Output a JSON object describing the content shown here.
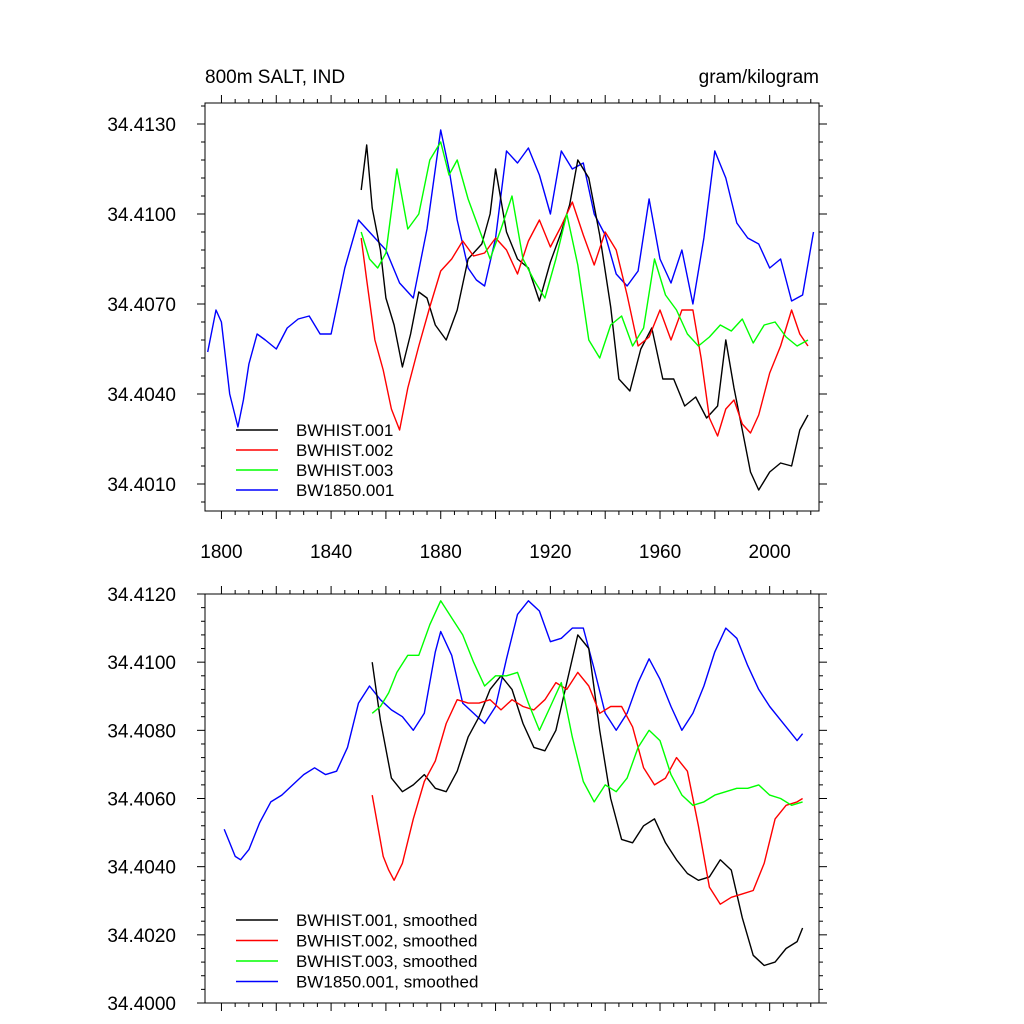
{
  "colors": {
    "BWHIST.001": "#000000",
    "BWHIST.002": "#ff0000",
    "BWHIST.003": "#00ff00",
    "BW1850.001": "#0000ff"
  },
  "chart_data": [
    {
      "type": "line",
      "title_left": "800m SALT, IND",
      "title_right": "gram/kilogram",
      "xlim": [
        1794,
        2018
      ],
      "ylim": [
        34.4001,
        34.4137
      ],
      "xticks": [
        1800,
        1840,
        1880,
        1920,
        1960,
        2000
      ],
      "yticks": [
        34.401,
        34.404,
        34.407,
        34.41,
        34.413
      ],
      "ytick_labels": [
        "34.4010",
        "34.4040",
        "34.4070",
        "34.4100",
        "34.4130"
      ],
      "legend": [
        "BWHIST.001",
        "BWHIST.002",
        "BWHIST.003",
        "BW1850.001"
      ],
      "series": [
        {
          "name": "BW1850.001",
          "x": [
            1795,
            1798,
            1800,
            1803,
            1806,
            1808,
            1810,
            1813,
            1816,
            1820,
            1824,
            1828,
            1832,
            1836,
            1840,
            1845,
            1850,
            1855,
            1860,
            1865,
            1870,
            1875,
            1880,
            1883,
            1886,
            1890,
            1893,
            1896,
            1900,
            1904,
            1908,
            1912,
            1916,
            1920,
            1924,
            1928,
            1932,
            1936,
            1940,
            1944,
            1948,
            1952,
            1956,
            1960,
            1964,
            1968,
            1972,
            1976,
            1980,
            1984,
            1988,
            1992,
            1996,
            2000,
            2004,
            2008,
            2012,
            2016
          ],
          "values": [
            34.4054,
            34.4068,
            34.4064,
            34.404,
            34.4029,
            34.4038,
            34.405,
            34.406,
            34.4058,
            34.4055,
            34.4062,
            34.4065,
            34.4066,
            34.406,
            34.406,
            34.4082,
            34.4098,
            34.4093,
            34.4088,
            34.4077,
            34.4072,
            34.4095,
            34.4128,
            34.4115,
            34.4098,
            34.4082,
            34.4078,
            34.4076,
            34.4092,
            34.4121,
            34.4117,
            34.4122,
            34.4113,
            34.41,
            34.4121,
            34.4115,
            34.4117,
            34.41,
            34.4093,
            34.408,
            34.4076,
            34.4081,
            34.4105,
            34.4085,
            34.4077,
            34.4088,
            34.407,
            34.4092,
            34.4121,
            34.4112,
            34.4097,
            34.4092,
            34.409,
            34.4082,
            34.4085,
            34.4071,
            34.4073,
            34.4094
          ]
        },
        {
          "name": "BWHIST.001",
          "x": [
            1851,
            1853,
            1855,
            1858,
            1860,
            1863,
            1866,
            1869,
            1872,
            1875,
            1878,
            1882,
            1886,
            1890,
            1895,
            1898,
            1900,
            1904,
            1908,
            1912,
            1916,
            1920,
            1924,
            1927,
            1930,
            1934,
            1938,
            1942,
            1945,
            1949,
            1953,
            1957,
            1961,
            1965,
            1969,
            1973,
            1977,
            1981,
            1984,
            1987,
            1990,
            1993,
            1996,
            2000,
            2004,
            2008,
            2011,
            2014
          ],
          "values": [
            34.4108,
            34.4123,
            34.4102,
            34.4088,
            34.4072,
            34.4063,
            34.4049,
            34.406,
            34.4074,
            34.4072,
            34.4063,
            34.4058,
            34.4068,
            34.4085,
            34.409,
            34.41,
            34.4115,
            34.4094,
            34.4085,
            34.4082,
            34.4071,
            34.4084,
            34.4094,
            34.4103,
            34.4118,
            34.4112,
            34.4093,
            34.4069,
            34.4045,
            34.4041,
            34.4055,
            34.4062,
            34.4045,
            34.4045,
            34.4036,
            34.4039,
            34.4032,
            34.4036,
            34.4058,
            34.4042,
            34.4028,
            34.4014,
            34.4008,
            34.4014,
            34.4017,
            34.4016,
            34.4028,
            34.4033
          ]
        },
        {
          "name": "BWHIST.002",
          "x": [
            1851,
            1853,
            1856,
            1859,
            1862,
            1865,
            1868,
            1872,
            1876,
            1880,
            1884,
            1888,
            1892,
            1896,
            1900,
            1904,
            1908,
            1912,
            1916,
            1920,
            1924,
            1928,
            1932,
            1936,
            1940,
            1944,
            1948,
            1952,
            1956,
            1960,
            1964,
            1968,
            1972,
            1975,
            1978,
            1981,
            1984,
            1987,
            1990,
            1993,
            1996,
            2000,
            2004,
            2008,
            2011,
            2014
          ],
          "values": [
            34.4092,
            34.4078,
            34.4058,
            34.4048,
            34.4035,
            34.4028,
            34.4042,
            34.4056,
            34.4069,
            34.4081,
            34.4085,
            34.4091,
            34.4086,
            34.4087,
            34.4092,
            34.4088,
            34.408,
            34.4091,
            34.4098,
            34.4089,
            34.4096,
            34.4104,
            34.4093,
            34.4083,
            34.4094,
            34.4088,
            34.4073,
            34.4056,
            34.4059,
            34.4068,
            34.4058,
            34.4068,
            34.4068,
            34.4052,
            34.4032,
            34.4026,
            34.4035,
            34.4038,
            34.403,
            34.4027,
            34.4033,
            34.4047,
            34.4056,
            34.4068,
            34.406,
            34.4056
          ]
        },
        {
          "name": "BWHIST.003",
          "x": [
            1851,
            1854,
            1857,
            1860,
            1864,
            1868,
            1872,
            1876,
            1880,
            1883,
            1886,
            1890,
            1894,
            1898,
            1902,
            1906,
            1910,
            1914,
            1918,
            1922,
            1926,
            1930,
            1934,
            1938,
            1942,
            1946,
            1950,
            1954,
            1958,
            1962,
            1966,
            1970,
            1974,
            1978,
            1982,
            1986,
            1990,
            1994,
            1998,
            2002,
            2006,
            2010,
            2014
          ],
          "values": [
            34.4094,
            34.4085,
            34.4082,
            34.4087,
            34.4115,
            34.4095,
            34.41,
            34.4118,
            34.4124,
            34.4113,
            34.4118,
            34.4105,
            34.4095,
            34.4085,
            34.4095,
            34.4106,
            34.4085,
            34.4078,
            34.4072,
            34.4085,
            34.41,
            34.4083,
            34.4058,
            34.4052,
            34.4063,
            34.4066,
            34.4056,
            34.4062,
            34.4085,
            34.4073,
            34.4068,
            34.406,
            34.4056,
            34.4059,
            34.4063,
            34.4061,
            34.4065,
            34.4057,
            34.4063,
            34.4064,
            34.4059,
            34.4056,
            34.4058
          ]
        }
      ]
    },
    {
      "type": "line",
      "title_left": "",
      "title_right": "",
      "xlim": [
        1794,
        2018
      ],
      "ylim": [
        34.4,
        34.412
      ],
      "xticks": [
        1800,
        1840,
        1880,
        1920,
        1960,
        2000
      ],
      "yticks": [
        34.4,
        34.402,
        34.404,
        34.406,
        34.408,
        34.41,
        34.412
      ],
      "ytick_labels": [
        "34.4000",
        "34.4020",
        "34.4040",
        "34.4060",
        "34.4080",
        "34.4100",
        "34.4120"
      ],
      "legend": [
        "BWHIST.001, smoothed",
        "BWHIST.002, smoothed",
        "BWHIST.003, smoothed",
        "BW1850.001, smoothed"
      ],
      "series": [
        {
          "name": "BW1850.001, smoothed",
          "x": [
            1801,
            1803,
            1805,
            1807,
            1810,
            1814,
            1818,
            1822,
            1826,
            1830,
            1834,
            1838,
            1842,
            1846,
            1850,
            1854,
            1858,
            1862,
            1866,
            1870,
            1874,
            1878,
            1880,
            1884,
            1888,
            1892,
            1896,
            1900,
            1904,
            1908,
            1912,
            1916,
            1920,
            1924,
            1928,
            1932,
            1936,
            1940,
            1944,
            1948,
            1952,
            1956,
            1960,
            1964,
            1968,
            1972,
            1976,
            1980,
            1984,
            1988,
            1992,
            1996,
            2000,
            2004,
            2008,
            2010,
            2012
          ],
          "values": [
            34.4051,
            34.4047,
            34.4043,
            34.4042,
            34.4045,
            34.4053,
            34.4059,
            34.4061,
            34.4064,
            34.4067,
            34.4069,
            34.4067,
            34.4068,
            34.4075,
            34.4088,
            34.4093,
            34.4089,
            34.4086,
            34.4084,
            34.408,
            34.4085,
            34.4103,
            34.4109,
            34.4102,
            34.4088,
            34.4085,
            34.4082,
            34.4087,
            34.4101,
            34.4114,
            34.4118,
            34.4115,
            34.4106,
            34.4107,
            34.411,
            34.411,
            34.4098,
            34.4085,
            34.408,
            34.4085,
            34.4094,
            34.4101,
            34.4095,
            34.4087,
            34.408,
            34.4085,
            34.4093,
            34.4103,
            34.411,
            34.4107,
            34.4099,
            34.4092,
            34.4087,
            34.4083,
            34.4079,
            34.4077,
            34.4079
          ]
        },
        {
          "name": "BWHIST.001, smoothed",
          "x": [
            1855,
            1858,
            1862,
            1866,
            1870,
            1874,
            1878,
            1882,
            1886,
            1890,
            1894,
            1898,
            1902,
            1906,
            1910,
            1914,
            1918,
            1922,
            1926,
            1930,
            1934,
            1938,
            1942,
            1946,
            1950,
            1954,
            1958,
            1962,
            1966,
            1970,
            1974,
            1978,
            1982,
            1986,
            1990,
            1994,
            1998,
            2002,
            2006,
            2010,
            2012
          ],
          "values": [
            34.41,
            34.4083,
            34.4066,
            34.4062,
            34.4064,
            34.4067,
            34.4063,
            34.4062,
            34.4068,
            34.4078,
            34.4084,
            34.4092,
            34.4096,
            34.4092,
            34.4082,
            34.4075,
            34.4074,
            34.408,
            34.4094,
            34.4108,
            34.4104,
            34.408,
            34.406,
            34.4048,
            34.4047,
            34.4052,
            34.4054,
            34.4047,
            34.4042,
            34.4038,
            34.4036,
            34.4037,
            34.4042,
            34.4039,
            34.4025,
            34.4014,
            34.4011,
            34.4012,
            34.4016,
            34.4018,
            34.4022
          ]
        },
        {
          "name": "BWHIST.002, smoothed",
          "x": [
            1855,
            1857,
            1859,
            1861,
            1863,
            1866,
            1870,
            1874,
            1878,
            1882,
            1886,
            1890,
            1894,
            1898,
            1902,
            1906,
            1910,
            1914,
            1918,
            1922,
            1926,
            1930,
            1934,
            1938,
            1942,
            1946,
            1950,
            1954,
            1958,
            1962,
            1966,
            1970,
            1974,
            1978,
            1982,
            1986,
            1990,
            1994,
            1998,
            2002,
            2006,
            2010,
            2012
          ],
          "values": [
            34.4061,
            34.4052,
            34.4043,
            34.4039,
            34.4036,
            34.4041,
            34.4054,
            34.4065,
            34.4071,
            34.4082,
            34.4089,
            34.4088,
            34.4088,
            34.4089,
            34.4086,
            34.4089,
            34.4087,
            34.4086,
            34.4089,
            34.4094,
            34.4092,
            34.4097,
            34.4093,
            34.4085,
            34.4087,
            34.4087,
            34.4081,
            34.4069,
            34.4064,
            34.4066,
            34.4072,
            34.4068,
            34.4052,
            34.4034,
            34.4029,
            34.4031,
            34.4032,
            34.4033,
            34.4041,
            34.4054,
            34.4058,
            34.4059,
            34.406
          ]
        },
        {
          "name": "BWHIST.003, smoothed",
          "x": [
            1855,
            1858,
            1861,
            1864,
            1868,
            1872,
            1876,
            1880,
            1884,
            1888,
            1892,
            1896,
            1900,
            1904,
            1908,
            1912,
            1916,
            1920,
            1924,
            1928,
            1932,
            1936,
            1940,
            1944,
            1948,
            1952,
            1956,
            1960,
            1964,
            1968,
            1972,
            1976,
            1980,
            1984,
            1988,
            1992,
            1996,
            2000,
            2004,
            2008,
            2012
          ],
          "values": [
            34.4085,
            34.4087,
            34.4091,
            34.4097,
            34.4102,
            34.4102,
            34.4111,
            34.4118,
            34.4113,
            34.4108,
            34.41,
            34.4093,
            34.4096,
            34.4096,
            34.4097,
            34.4088,
            34.408,
            34.4087,
            34.4094,
            34.4078,
            34.4065,
            34.4059,
            34.4064,
            34.4062,
            34.4066,
            34.4075,
            34.408,
            34.4077,
            34.4067,
            34.4061,
            34.4058,
            34.4059,
            34.4061,
            34.4062,
            34.4063,
            34.4063,
            34.4064,
            34.4061,
            34.406,
            34.4058,
            34.4059
          ]
        }
      ]
    }
  ]
}
